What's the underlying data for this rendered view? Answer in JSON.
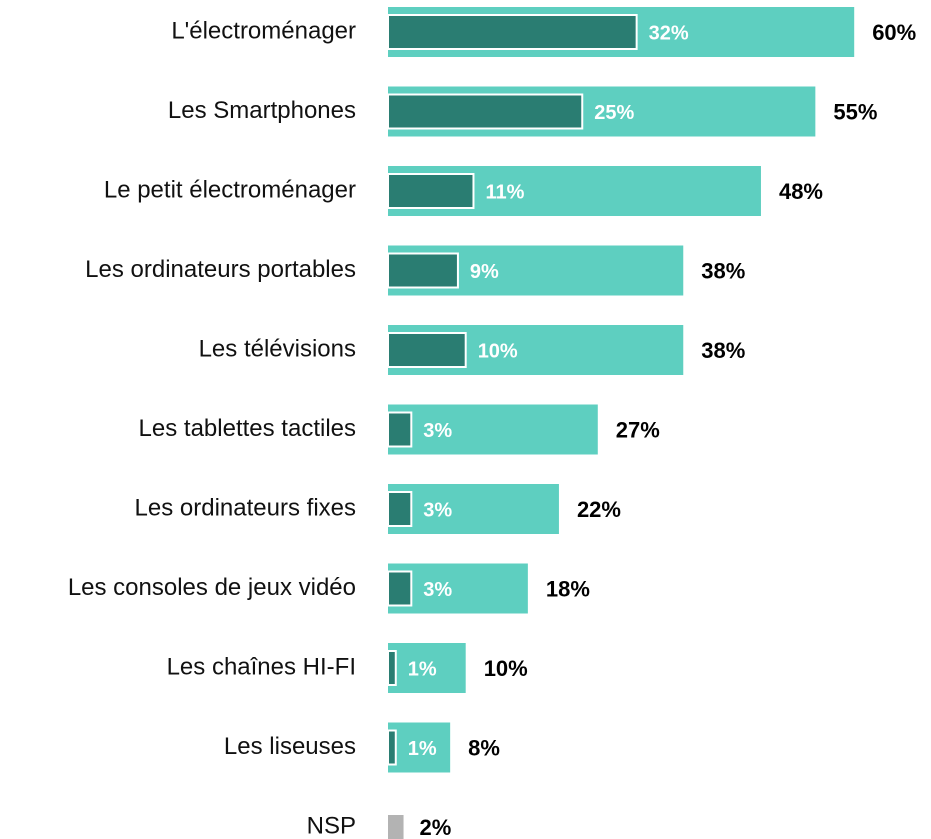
{
  "chart_data": {
    "type": "bar",
    "orientation": "horizontal",
    "categories": [
      "L'électroménager",
      "Les Smartphones",
      "Le petit électroménager",
      "Les ordinateurs portables",
      "Les télévisions",
      "Les tablettes tactiles",
      "Les ordinateurs fixes",
      "Les consoles de jeux vidéo",
      "Les chaînes HI-FI",
      "Les liseuses",
      "NSP"
    ],
    "series": [
      {
        "color": "#5ecfc0",
        "colors": [
          "#5ecfc0",
          "#5ecfc0",
          "#5ecfc0",
          "#5ecfc0",
          "#5ecfc0",
          "#5ecfc0",
          "#5ecfc0",
          "#5ecfc0",
          "#5ecfc0",
          "#5ecfc0",
          "#b3b3b3"
        ],
        "values": [
          60,
          55,
          48,
          38,
          38,
          27,
          22,
          18,
          10,
          8,
          2
        ],
        "value_labels": [
          "60%",
          "55%",
          "48%",
          "38%",
          "38%",
          "27%",
          "22%",
          "18%",
          "10%",
          "8%",
          "2%"
        ]
      },
      {
        "color": "#2a7d72",
        "values": [
          32,
          25,
          11,
          9,
          10,
          3,
          3,
          3,
          1,
          1,
          null
        ],
        "value_labels": [
          "32%",
          "25%",
          "11%",
          "9%",
          "10%",
          "3%",
          "3%",
          "3%",
          "1%",
          "1%",
          null
        ]
      }
    ]
  }
}
